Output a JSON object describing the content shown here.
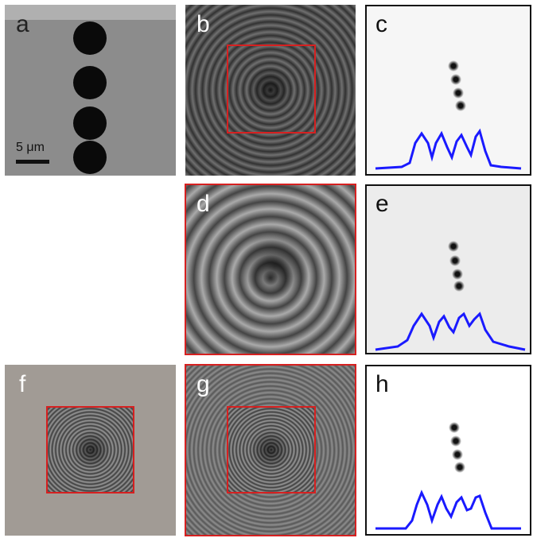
{
  "panels": [
    {
      "label": "a"
    },
    {
      "label": "b"
    },
    {
      "label": "c"
    },
    {
      "label": "d"
    },
    {
      "label": "e"
    },
    {
      "label": "f"
    },
    {
      "label": "g"
    },
    {
      "label": "h"
    }
  ],
  "scale_bar": {
    "label": "5 μm"
  }
}
